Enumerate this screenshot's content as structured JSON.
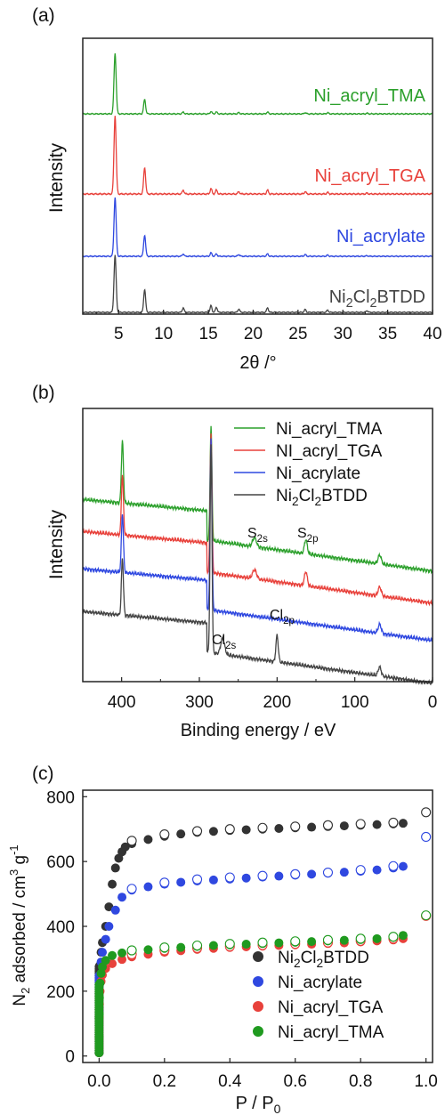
{
  "chart_data": [
    {
      "panel": "(a)",
      "type": "line",
      "xlabel": "2θ /°",
      "ylabel": "Intensity",
      "xlim": [
        1,
        40
      ],
      "xticks": [
        5,
        10,
        15,
        20,
        25,
        30,
        35,
        40
      ],
      "y_ticks": "none",
      "legend": "inline labels at right of each trace",
      "peaks_2theta": [
        4.6,
        7.9,
        12.2,
        15.3,
        15.9,
        18.4,
        21.6,
        25.8,
        28.3,
        32.7
      ],
      "series": [
        {
          "name": "Ni_acryl_TMA",
          "color": "#2ca02c",
          "peak_heights": [
            100,
            24,
            3,
            4,
            3,
            2,
            3,
            2,
            2,
            1
          ]
        },
        {
          "name": "Ni_acryl_TGA",
          "color": "#e8413b",
          "peak_heights": [
            100,
            34,
            5,
            7,
            5,
            3,
            5,
            3,
            2,
            1
          ]
        },
        {
          "name": "Ni_acrylate",
          "color": "#2f48e0",
          "peak_heights": [
            100,
            36,
            4,
            6,
            4,
            3,
            4,
            3,
            2,
            1
          ]
        },
        {
          "name": "Ni2Cl2BTDD",
          "color": "#444444",
          "peak_heights": [
            100,
            40,
            8,
            12,
            9,
            6,
            8,
            5,
            4,
            3
          ]
        }
      ]
    },
    {
      "panel": "(b)",
      "type": "line",
      "xlabel": "Binding energy / eV",
      "ylabel": "Intensity",
      "xlim": [
        450,
        0
      ],
      "xticks": [
        400,
        300,
        200,
        100,
        0
      ],
      "y_ticks": "none",
      "legend": "top-right",
      "peak_positions_eV": [
        399,
        285,
        270,
        229,
        200,
        163,
        70
      ],
      "series": [
        {
          "name": "Ni_acryl_TMA",
          "color": "#2ca02c",
          "label_sub": null
        },
        {
          "name": "NI_acryl_TGA",
          "color": "#e8413b",
          "label_sub": null
        },
        {
          "name": "Ni_acrylate",
          "color": "#2f48e0",
          "label_sub": null
        },
        {
          "name": "Ni2Cl2BTDD",
          "color": "#444444",
          "label_sub": null
        }
      ],
      "annotations": [
        {
          "text": "S",
          "sub": "2s",
          "x": 229
        },
        {
          "text": "S",
          "sub": "2p",
          "x": 163
        },
        {
          "text": "Cl",
          "sub": "2s",
          "x": 270
        },
        {
          "text": "Cl",
          "sub": "2p",
          "x": 200
        }
      ]
    },
    {
      "panel": "(c)",
      "type": "scatter",
      "xlabel": "P / P0",
      "ylabel": "N2 adsorbed / cm3 g-1",
      "xlim": [
        -0.05,
        1.02
      ],
      "ylim": [
        -20,
        820
      ],
      "xticks": [
        0.0,
        0.2,
        0.4,
        0.6,
        0.8,
        1.0
      ],
      "yticks": [
        0,
        200,
        400,
        600,
        800
      ],
      "legend": "bottom-right",
      "series": [
        {
          "name": "Ni2Cl2BTDD",
          "color": "#333333",
          "adsorption": [
            [
              0.0,
              10
            ],
            [
              0.0,
              60
            ],
            [
              0.0005,
              150
            ],
            [
              0.001,
              220
            ],
            [
              0.003,
              280
            ],
            [
              0.006,
              320
            ],
            [
              0.01,
              350
            ],
            [
              0.02,
              400
            ],
            [
              0.03,
              460
            ],
            [
              0.04,
              530
            ],
            [
              0.05,
              580
            ],
            [
              0.06,
              610
            ],
            [
              0.07,
              630
            ],
            [
              0.08,
              645
            ],
            [
              0.1,
              655
            ],
            [
              0.15,
              668
            ],
            [
              0.2,
              678
            ],
            [
              0.25,
              685
            ],
            [
              0.3,
              690
            ],
            [
              0.35,
              693
            ],
            [
              0.4,
              696
            ],
            [
              0.45,
              698
            ],
            [
              0.5,
              700
            ],
            [
              0.55,
              702
            ],
            [
              0.6,
              704
            ],
            [
              0.65,
              706
            ],
            [
              0.7,
              708
            ],
            [
              0.75,
              710
            ],
            [
              0.8,
              712
            ],
            [
              0.85,
              714
            ],
            [
              0.9,
              716
            ],
            [
              0.93,
              718
            ]
          ],
          "desorption": [
            [
              1.0,
              752
            ],
            [
              0.9,
              720
            ],
            [
              0.8,
              716
            ],
            [
              0.7,
              712
            ],
            [
              0.6,
              708
            ],
            [
              0.5,
              704
            ],
            [
              0.4,
              700
            ],
            [
              0.3,
              694
            ],
            [
              0.2,
              684
            ],
            [
              0.1,
              664
            ]
          ]
        },
        {
          "name": "Ni_acrylate",
          "color": "#2f48e0",
          "adsorption": [
            [
              0.0,
              10
            ],
            [
              0.0,
              60
            ],
            [
              0.0005,
              140
            ],
            [
              0.001,
              200
            ],
            [
              0.003,
              250
            ],
            [
              0.006,
              290
            ],
            [
              0.01,
              320
            ],
            [
              0.02,
              360
            ],
            [
              0.03,
              400
            ],
            [
              0.05,
              450
            ],
            [
              0.07,
              490
            ],
            [
              0.1,
              512
            ],
            [
              0.15,
              522
            ],
            [
              0.2,
              530
            ],
            [
              0.25,
              536
            ],
            [
              0.3,
              540
            ],
            [
              0.35,
              543
            ],
            [
              0.4,
              546
            ],
            [
              0.45,
              549
            ],
            [
              0.5,
              552
            ],
            [
              0.55,
              555
            ],
            [
              0.6,
              558
            ],
            [
              0.65,
              561
            ],
            [
              0.7,
              564
            ],
            [
              0.75,
              567
            ],
            [
              0.8,
              570
            ],
            [
              0.85,
              574
            ],
            [
              0.9,
              580
            ],
            [
              0.93,
              585
            ]
          ],
          "desorption": [
            [
              1.0,
              676
            ],
            [
              0.9,
              586
            ],
            [
              0.8,
              574
            ],
            [
              0.7,
              566
            ],
            [
              0.6,
              561
            ],
            [
              0.5,
              556
            ],
            [
              0.4,
              551
            ],
            [
              0.3,
              545
            ],
            [
              0.2,
              535
            ],
            [
              0.1,
              516
            ]
          ]
        },
        {
          "name": "Ni_acryl_TGA",
          "color": "#e8413b",
          "adsorption": [
            [
              0.0,
              10
            ],
            [
              0.0,
              60
            ],
            [
              0.0005,
              120
            ],
            [
              0.001,
              160
            ],
            [
              0.003,
              200
            ],
            [
              0.006,
              230
            ],
            [
              0.01,
              250
            ],
            [
              0.02,
              270
            ],
            [
              0.04,
              285
            ],
            [
              0.07,
              298
            ],
            [
              0.1,
              306
            ],
            [
              0.15,
              314
            ],
            [
              0.2,
              320
            ],
            [
              0.25,
              325
            ],
            [
              0.3,
              329
            ],
            [
              0.35,
              332
            ],
            [
              0.4,
              335
            ],
            [
              0.45,
              337
            ],
            [
              0.5,
              339
            ],
            [
              0.55,
              341
            ],
            [
              0.6,
              343
            ],
            [
              0.65,
              345
            ],
            [
              0.7,
              347
            ],
            [
              0.75,
              349
            ],
            [
              0.8,
              352
            ],
            [
              0.85,
              355
            ],
            [
              0.9,
              358
            ],
            [
              0.93,
              362
            ]
          ],
          "desorption": [
            [
              1.0,
              432
            ],
            [
              0.9,
              362
            ],
            [
              0.8,
              355
            ],
            [
              0.7,
              350
            ],
            [
              0.6,
              346
            ],
            [
              0.5,
              342
            ],
            [
              0.4,
              338
            ],
            [
              0.3,
              333
            ],
            [
              0.2,
              326
            ],
            [
              0.1,
              314
            ]
          ]
        },
        {
          "name": "Ni_acryl_TMA",
          "color": "#1f9a1f",
          "adsorption": [
            [
              0.0,
              10
            ],
            [
              0.0,
              60
            ],
            [
              0.0005,
              130
            ],
            [
              0.001,
              180
            ],
            [
              0.003,
              225
            ],
            [
              0.006,
              255
            ],
            [
              0.01,
              275
            ],
            [
              0.02,
              295
            ],
            [
              0.04,
              310
            ],
            [
              0.07,
              318
            ],
            [
              0.1,
              324
            ],
            [
              0.15,
              328
            ],
            [
              0.2,
              332
            ],
            [
              0.25,
              335
            ],
            [
              0.3,
              338
            ],
            [
              0.35,
              341
            ],
            [
              0.4,
              343
            ],
            [
              0.45,
              345
            ],
            [
              0.5,
              347
            ],
            [
              0.55,
              349
            ],
            [
              0.6,
              351
            ],
            [
              0.65,
              353
            ],
            [
              0.7,
              355
            ],
            [
              0.75,
              357
            ],
            [
              0.8,
              359
            ],
            [
              0.85,
              362
            ],
            [
              0.9,
              366
            ],
            [
              0.93,
              372
            ]
          ],
          "desorption": [
            [
              1.0,
              434
            ],
            [
              0.9,
              368
            ],
            [
              0.8,
              362
            ],
            [
              0.7,
              358
            ],
            [
              0.6,
              354
            ],
            [
              0.5,
              350
            ],
            [
              0.4,
              346
            ],
            [
              0.3,
              341
            ],
            [
              0.2,
              335
            ],
            [
              0.1,
              326
            ]
          ]
        }
      ]
    }
  ]
}
